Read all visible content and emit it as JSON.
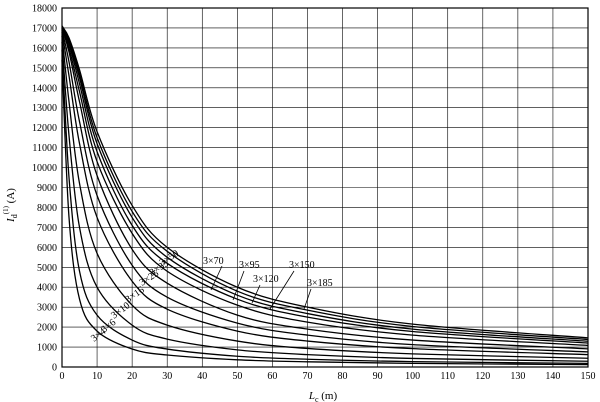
{
  "chart_data": {
    "type": "line",
    "xlabel": {
      "main": "L",
      "sub": "c",
      "unit": " (m)"
    },
    "ylabel": {
      "main": "I",
      "sub": "d",
      "sup": "(1)",
      "unit": " (A)"
    },
    "xlim": [
      0,
      150
    ],
    "ylim": [
      0,
      18000
    ],
    "xticks": [
      0,
      10,
      20,
      30,
      40,
      50,
      60,
      70,
      80,
      90,
      100,
      110,
      120,
      130,
      140,
      150
    ],
    "yticks": [
      0,
      1000,
      2000,
      3000,
      4000,
      5000,
      6000,
      7000,
      8000,
      9000,
      10000,
      11000,
      12000,
      13000,
      14000,
      15000,
      16000,
      17000,
      18000
    ],
    "grid": true,
    "series": [
      {
        "name": "3×4",
        "x": [
          0,
          2,
          5,
          10,
          20,
          30,
          50,
          70,
          100,
          150
        ],
        "y": [
          15400,
          7500,
          3400,
          1800,
          900,
          600,
          360,
          260,
          180,
          120
        ]
      },
      {
        "name": "3×6",
        "x": [
          0,
          2,
          5,
          10,
          20,
          30,
          50,
          70,
          100,
          150
        ],
        "y": [
          15900,
          9500,
          4800,
          2600,
          1350,
          900,
          540,
          390,
          270,
          180
        ]
      },
      {
        "name": "3×10",
        "x": [
          0,
          2,
          5,
          10,
          20,
          30,
          50,
          70,
          100,
          150
        ],
        "y": [
          16300,
          11600,
          7000,
          4000,
          2100,
          1400,
          860,
          620,
          430,
          290
        ]
      },
      {
        "name": "3×16",
        "x": [
          0,
          2,
          5,
          10,
          20,
          30,
          50,
          70,
          100,
          150
        ],
        "y": [
          16600,
          13300,
          9200,
          5700,
          3100,
          2100,
          1300,
          930,
          660,
          440
        ]
      },
      {
        "name": "3×25",
        "x": [
          0,
          2,
          5,
          10,
          20,
          30,
          50,
          70,
          100,
          150
        ],
        "y": [
          16800,
          14600,
          11200,
          7500,
          4300,
          2900,
          1800,
          1300,
          920,
          620
        ]
      },
      {
        "name": "3×35",
        "x": [
          0,
          2,
          5,
          10,
          20,
          30,
          50,
          70,
          100,
          150
        ],
        "y": [
          16900,
          15300,
          12300,
          8600,
          5100,
          3500,
          2200,
          1600,
          1120,
          760
        ]
      },
      {
        "name": "3×50",
        "x": [
          0,
          2,
          5,
          10,
          20,
          30,
          50,
          70,
          100,
          150
        ],
        "y": [
          17000,
          15800,
          13300,
          9600,
          5900,
          4200,
          2600,
          1900,
          1350,
          910
        ]
      },
      {
        "name": "3×70",
        "x": [
          0,
          2,
          5,
          10,
          20,
          30,
          50,
          70,
          100,
          150
        ],
        "y": [
          17000,
          16000,
          13800,
          10300,
          6700,
          4800,
          3100,
          2250,
          1600,
          1080
        ]
      },
      {
        "name": "3×95",
        "x": [
          0,
          2,
          5,
          10,
          20,
          30,
          50,
          70,
          100,
          150
        ],
        "y": [
          17050,
          16200,
          14200,
          10800,
          7100,
          5200,
          3400,
          2500,
          1780,
          1200
        ]
      },
      {
        "name": "3×120",
        "x": [
          0,
          2,
          5,
          10,
          20,
          30,
          50,
          70,
          100,
          150
        ],
        "y": [
          17050,
          16300,
          14500,
          11200,
          7500,
          5500,
          3600,
          2680,
          1900,
          1290
        ]
      },
      {
        "name": "3×150",
        "x": [
          0,
          2,
          5,
          10,
          20,
          30,
          50,
          70,
          100,
          150
        ],
        "y": [
          17100,
          16400,
          14700,
          11500,
          7800,
          5800,
          3800,
          2850,
          2030,
          1380
        ]
      },
      {
        "name": "3×185",
        "x": [
          0,
          2,
          5,
          10,
          20,
          30,
          50,
          70,
          100,
          150
        ],
        "y": [
          17100,
          16500,
          14900,
          11800,
          8100,
          6000,
          4000,
          3000,
          2150,
          1460
        ]
      }
    ]
  }
}
